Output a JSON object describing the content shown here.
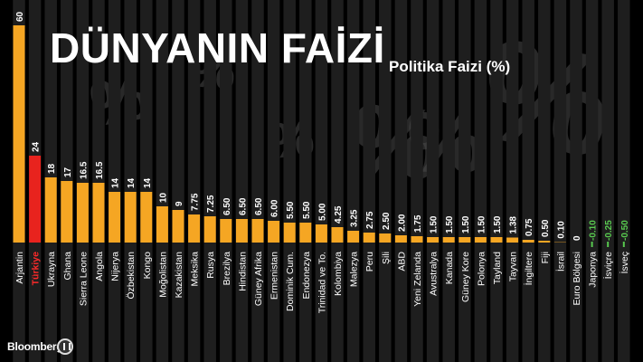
{
  "header": {
    "title": "DÜNYANIN FAİZİ",
    "subtitle": "Politika Faizi (%)"
  },
  "branding": {
    "source": "Bloomberg"
  },
  "colors": {
    "background": "#000000",
    "column": "#1e1e1e",
    "bar_default": "#f5a623",
    "bar_highlight": "#e8231e",
    "label_negative": "#58c94f",
    "label_default": "#ffffff",
    "highlight_label": "#ff2a2a",
    "watermark": "#4a4a4a"
  },
  "watermark_symbol": "%",
  "chart_data": {
    "type": "bar",
    "title": "DÜNYANIN FAİZİ",
    "subtitle": "Politika Faizi (%)",
    "xlabel": "",
    "ylabel": "Politika Faizi (%)",
    "ylim": [
      -0.5,
      60
    ],
    "grid": false,
    "highlight": "Türkiye",
    "categories": [
      "Arjantin",
      "Türkiye",
      "Ukrayna",
      "Ghana",
      "Sierra Leone",
      "Angola",
      "Nijerya",
      "Özbekistan",
      "Kongo",
      "Moğolistan",
      "Kazakistan",
      "Meksika",
      "Rusya",
      "Brezilya",
      "Hindistan",
      "Güney Afrika",
      "Ermenistan",
      "Dominik Cum.",
      "Endonezya",
      "Trinidad ve To.",
      "Kolombiya",
      "Malezya",
      "Peru",
      "Şili",
      "ABD",
      "Yeni Zelanda",
      "Avustralya",
      "Kanada",
      "Güney Kore",
      "Polonya",
      "Tayland",
      "Tayvan",
      "İngiltere",
      "Fiji",
      "İsrail",
      "Euro Bölgesi",
      "Japonya",
      "İsviçre",
      "İsveç"
    ],
    "values": [
      60,
      24,
      18,
      17,
      16.5,
      16.5,
      14,
      14,
      14,
      10,
      9,
      7.75,
      7.25,
      6.5,
      6.5,
      6.5,
      6,
      5.5,
      5.5,
      5,
      4.25,
      3.25,
      2.75,
      2.5,
      2,
      1.75,
      1.5,
      1.5,
      1.5,
      1.5,
      1.5,
      1.38,
      0.75,
      0.5,
      0.1,
      0,
      -0.1,
      -0.25,
      -0.5
    ],
    "value_labels": [
      "60",
      "24",
      "18",
      "17",
      "16.5",
      "16.5",
      "14",
      "14",
      "14",
      "10",
      "9",
      "7.75",
      "7.25",
      "6.50",
      "6.50",
      "6.50",
      "6.00",
      "5.50",
      "5.50",
      "5.00",
      "4.25",
      "3.25",
      "2.75",
      "2.50",
      "2.00",
      "1.75",
      "1.50",
      "1.50",
      "1.50",
      "1.50",
      "1.50",
      "1.38",
      "0.75",
      "0.50",
      "0.10",
      "0",
      "-0.10",
      "-0.25",
      "-0.50"
    ]
  }
}
